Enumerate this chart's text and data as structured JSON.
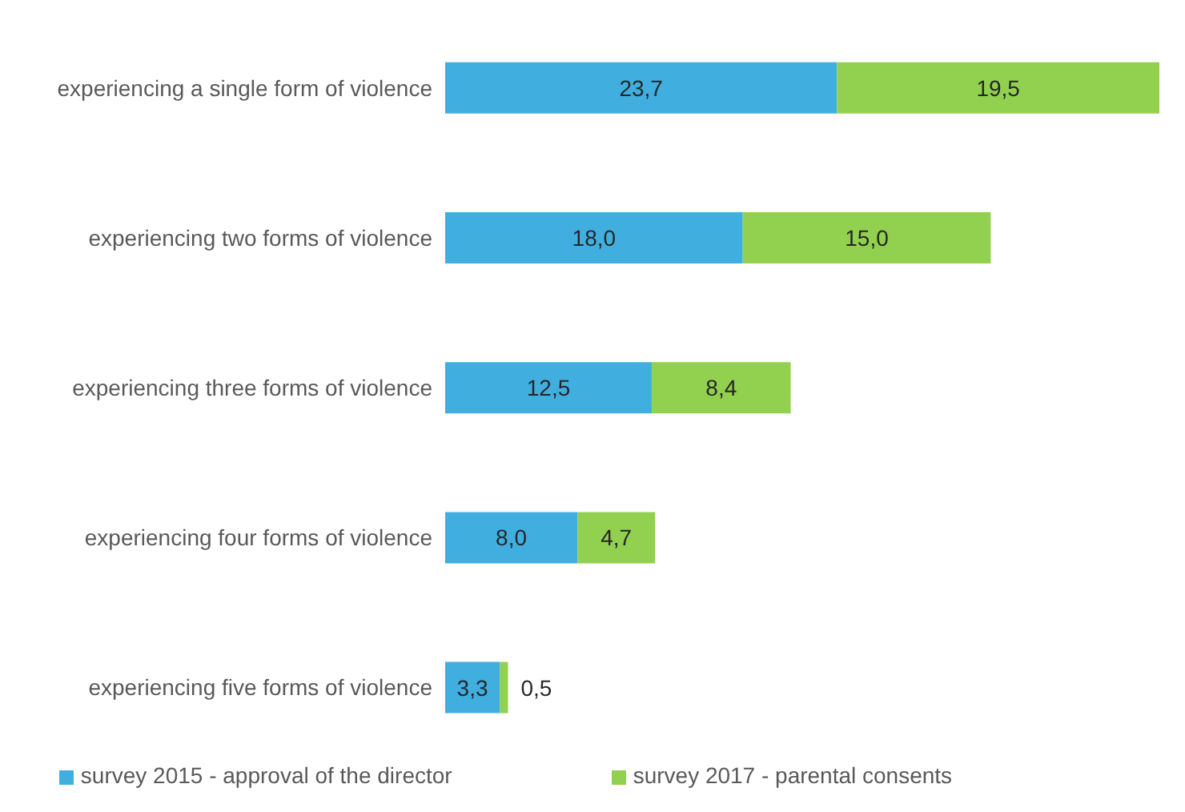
{
  "chart_data": {
    "type": "bar",
    "orientation": "horizontal",
    "stacked": true,
    "tick_labels": "y",
    "legend": "bottom",
    "grid": false,
    "categories": [
      "experiencing a single form of violence",
      "experiencing two forms of violence",
      "experiencing three forms of violence",
      "experiencing four forms of violence",
      "experiencing five forms of violence"
    ],
    "series": [
      {
        "name": "survey 2015 - approval of the director",
        "color": "#41aee0",
        "values": [
          23.7,
          18.0,
          12.5,
          8.0,
          3.3
        ],
        "value_labels": [
          "23,7",
          "18,0",
          "12,5",
          "8,0",
          "3,3"
        ]
      },
      {
        "name": "survey 2017 - parental consents",
        "color": "#92d050",
        "values": [
          19.5,
          15.0,
          8.4,
          4.7,
          0.5
        ],
        "value_labels": [
          "19,5",
          "15,0",
          "8,4",
          "4,7",
          "0,5"
        ]
      }
    ]
  }
}
